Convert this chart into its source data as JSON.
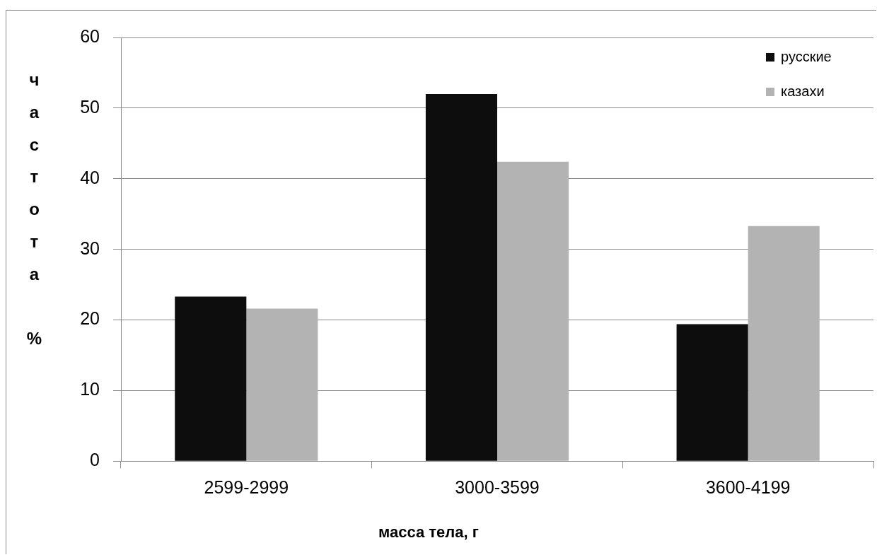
{
  "chart_data": {
    "type": "bar",
    "xlabel": "масса тела, г",
    "ylabel": "частота %",
    "categories": [
      "2599-2999",
      "3000-3599",
      "3600-4199"
    ],
    "series": [
      {
        "name": "русские",
        "color": "#0d0d0d",
        "values": [
          23.3,
          52,
          19.4
        ]
      },
      {
        "name": "казахи",
        "color": "#b3b3b3",
        "values": [
          21.6,
          42.4,
          33.3
        ]
      }
    ],
    "ylim": [
      0,
      60
    ],
    "yticks": [
      0,
      10,
      20,
      30,
      40,
      50,
      60
    ],
    "grid": "y",
    "legend": "top right"
  }
}
